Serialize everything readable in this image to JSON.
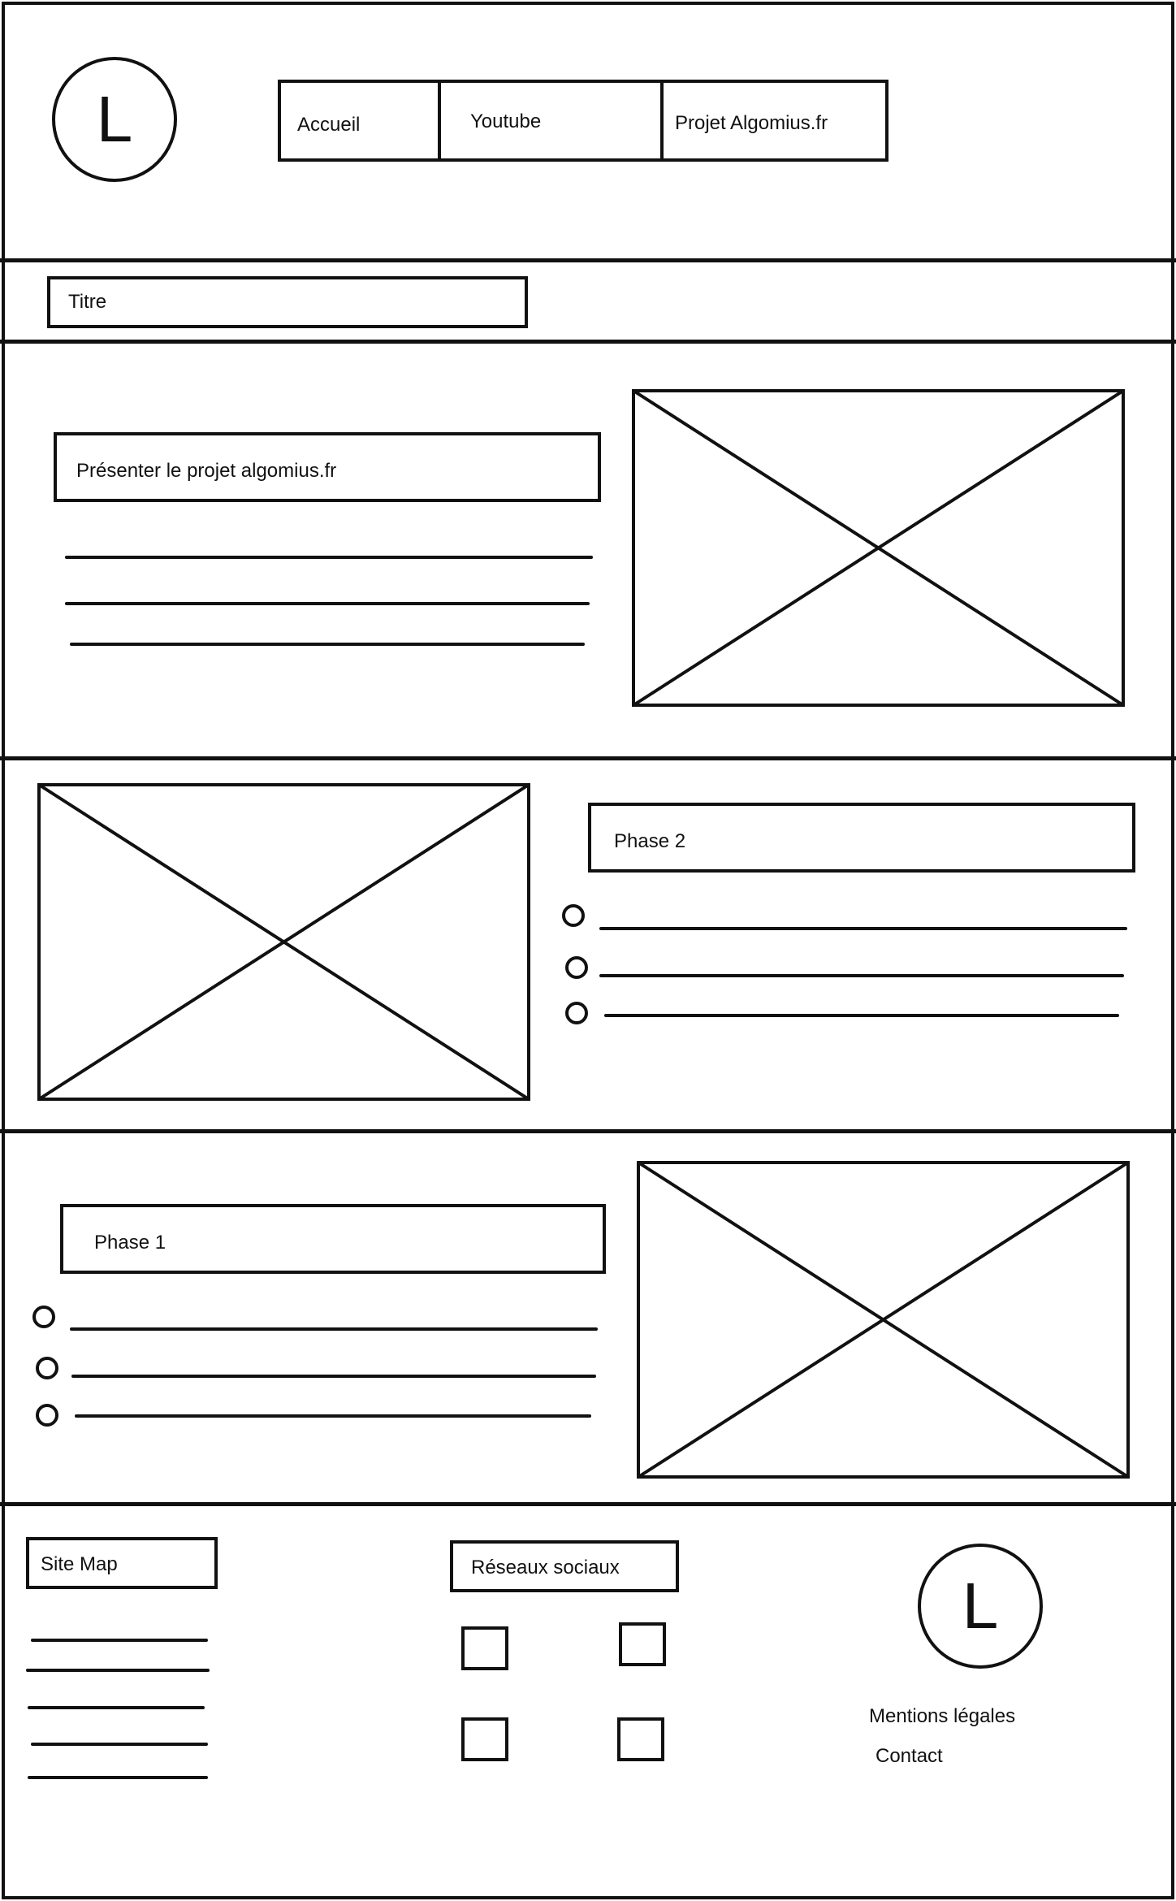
{
  "header": {
    "logo_letter": "L",
    "nav": [
      {
        "label": "Accueil"
      },
      {
        "label": "Youtube"
      },
      {
        "label": "Projet Algomius.fr"
      }
    ]
  },
  "title_bar": {
    "label": "Titre"
  },
  "intro": {
    "heading": "Présenter le projet algomius.fr"
  },
  "phase2": {
    "heading": "Phase 2"
  },
  "phase1": {
    "heading": "Phase 1"
  },
  "footer": {
    "sitemap_label": "Site Map",
    "social_label": "Réseaux sociaux",
    "logo_letter": "L",
    "legal_label": "Mentions légales",
    "contact_label": "Contact"
  },
  "icons": [
    "image-placeholder-icon",
    "social-icon",
    "bullet-icon"
  ]
}
